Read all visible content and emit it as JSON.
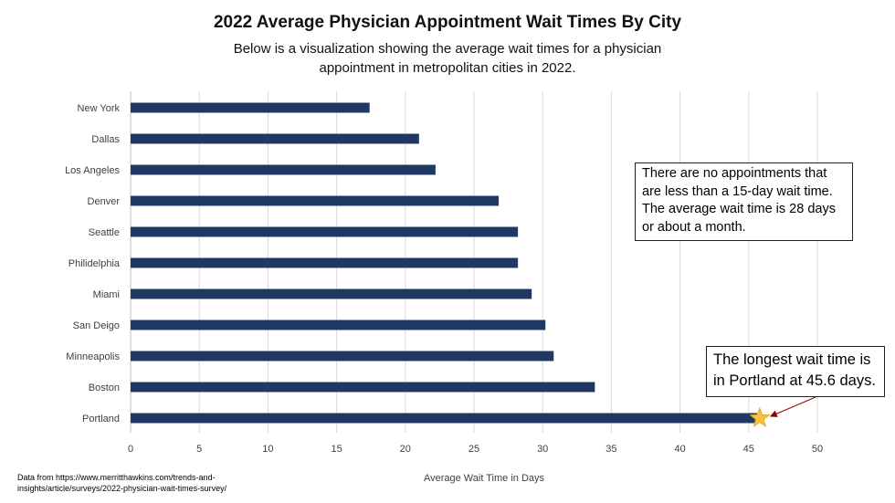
{
  "header": {
    "title": "2022 Average Physician Appointment Wait Times By City",
    "subtitle": "Below is a visualization showing the average wait times for a physician appointment in metropolitan cities in 2022."
  },
  "chart_data": {
    "type": "bar",
    "orientation": "horizontal",
    "categories": [
      "New York",
      "Dallas",
      "Los Angeles",
      "Denver",
      "Seattle",
      "Philidelphia",
      "Miami",
      "San Deigo",
      "Minneapolis",
      "Boston",
      "Portland"
    ],
    "values": [
      17.4,
      21.0,
      22.2,
      26.8,
      28.2,
      28.2,
      29.2,
      30.2,
      30.8,
      33.8,
      45.6
    ],
    "title": "2022 Average Physician Appointment Wait Times By City",
    "xlabel": "Average Wait Time in Days",
    "ylabel": "",
    "xlim": [
      0,
      50
    ],
    "xticks": [
      "0",
      "5",
      "10",
      "15",
      "20",
      "25",
      "30",
      "35",
      "40",
      "45",
      "50"
    ],
    "grid": "vertical",
    "bar_color": "#1f3864",
    "marker_color": "#f5c242",
    "legend": "none"
  },
  "annotations": {
    "summary": "There are no appointments that are less than a 15-day wait time. The average wait time is 28 days or about a month.",
    "longest": "The longest wait time is in Portland at 45.6 days."
  },
  "source": "Data from https://www.merritthawkins.com/trends-and-insights/article/surveys/2022-physician-wait-times-survey/"
}
